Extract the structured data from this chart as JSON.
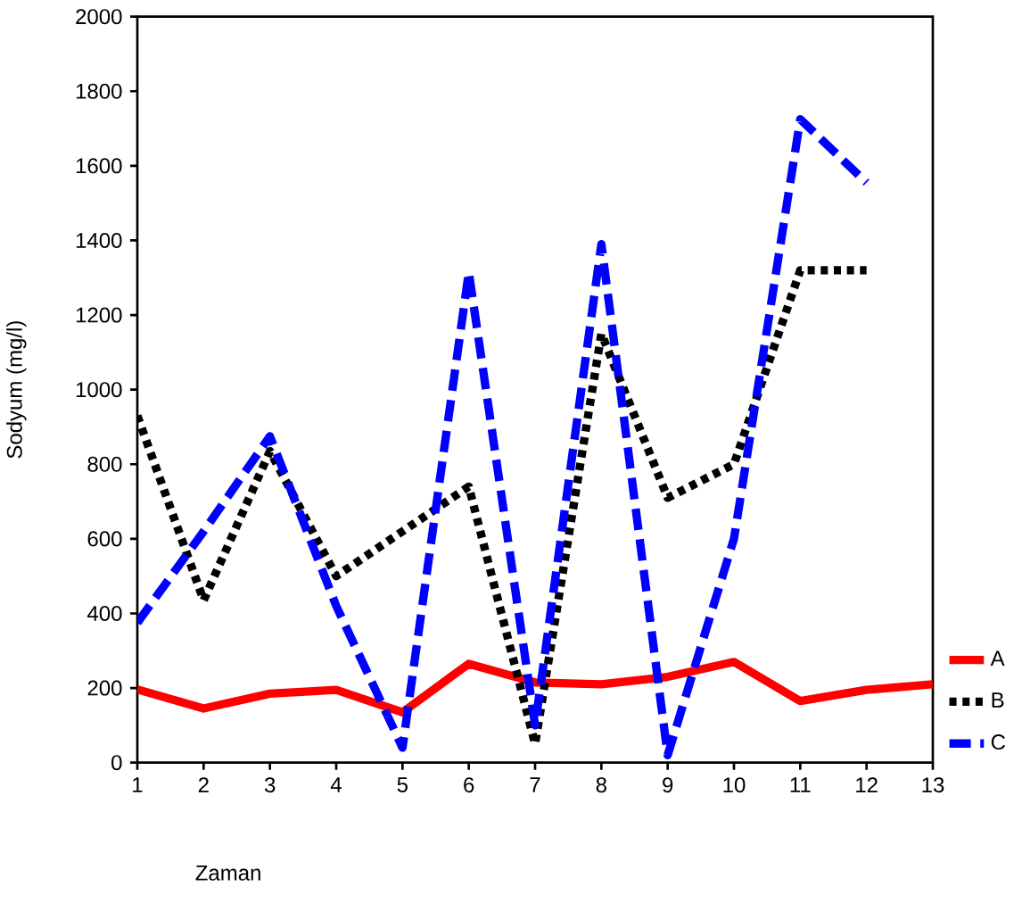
{
  "chart_data": {
    "type": "line",
    "xlabel": "Zaman",
    "ylabel": "Sodyum (mg/l)",
    "x": [
      1,
      2,
      3,
      4,
      5,
      6,
      7,
      8,
      9,
      10,
      11,
      12,
      13
    ],
    "xlim": [
      1,
      13
    ],
    "xticks": [
      1,
      2,
      3,
      4,
      5,
      6,
      7,
      8,
      9,
      10,
      11,
      12,
      13
    ],
    "ylim": [
      0,
      2000
    ],
    "yticks": [
      0,
      200,
      400,
      600,
      800,
      1000,
      1200,
      1400,
      1600,
      1800,
      2000
    ],
    "grid": false,
    "legend": "right",
    "marker": "none",
    "series": [
      {
        "name": "A",
        "color": "#ff0000",
        "line_style": "solid",
        "values": [
          196,
          145,
          185,
          195,
          135,
          265,
          215,
          210,
          230,
          270,
          165,
          195,
          210
        ]
      },
      {
        "name": "B",
        "color": "#000000",
        "line_style": "dotted",
        "values": [
          930,
          435,
          835,
          500,
          620,
          740,
          50,
          1150,
          710,
          800,
          1320,
          1320,
          null
        ]
      },
      {
        "name": "C",
        "color": "#0000ff",
        "line_style": "dashed",
        "values": [
          375,
          620,
          875,
          420,
          40,
          1315,
          100,
          1390,
          20,
          600,
          1725,
          1555,
          null
        ]
      }
    ]
  }
}
